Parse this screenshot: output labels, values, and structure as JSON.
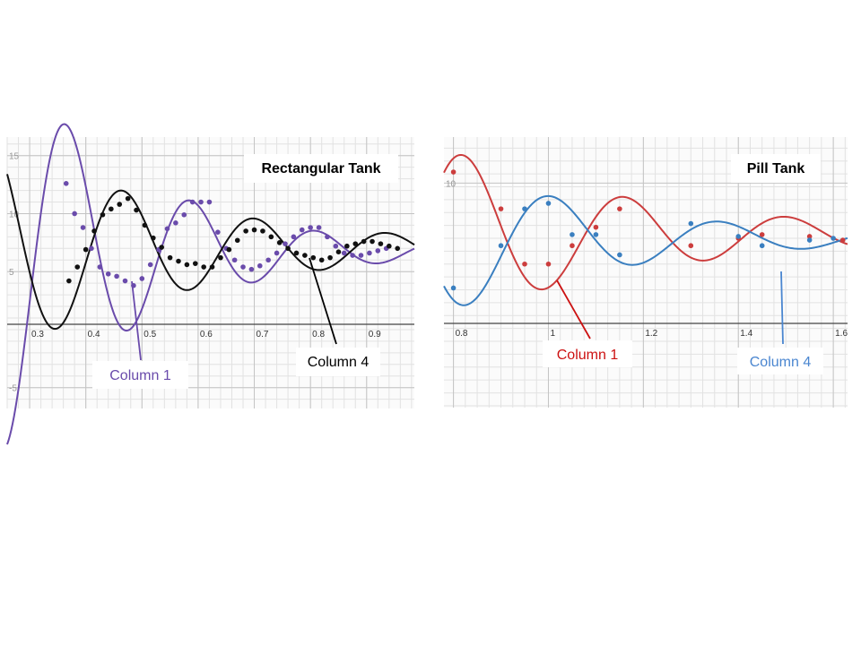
{
  "chart_data": [
    {
      "type": "scatter",
      "title": "Rectangular Tank",
      "xlabel": "",
      "ylabel": "",
      "xlim": [
        0.26,
        0.985
      ],
      "ylim": [
        -6.8,
        16.6
      ],
      "grid": true,
      "xticks": [
        "0.3",
        "0.4",
        "0.5",
        "0.6",
        "0.7",
        "0.8",
        "0.9"
      ],
      "xtick_values": [
        0.3,
        0.4,
        0.5,
        0.6,
        0.7,
        0.8,
        0.9
      ],
      "yticks": [
        "-5",
        "5",
        "10",
        "15"
      ],
      "ytick_values": [
        -5,
        5,
        10,
        15
      ],
      "series": [
        {
          "name": "Column 1",
          "color": "#6a4bab",
          "points": [
            [
              0.365,
              12.6
            ],
            [
              0.38,
              10
            ],
            [
              0.395,
              8.8
            ],
            [
              0.41,
              7
            ],
            [
              0.425,
              5.4
            ],
            [
              0.44,
              4.8
            ],
            [
              0.455,
              4.6
            ],
            [
              0.47,
              4.2
            ],
            [
              0.485,
              3.8
            ],
            [
              0.5,
              4.4
            ],
            [
              0.515,
              5.6
            ],
            [
              0.53,
              6.9
            ],
            [
              0.545,
              8.7
            ],
            [
              0.56,
              9.2
            ],
            [
              0.575,
              9.9
            ],
            [
              0.59,
              11
            ],
            [
              0.605,
              11
            ],
            [
              0.62,
              11
            ],
            [
              0.635,
              8.4
            ],
            [
              0.65,
              7
            ],
            [
              0.665,
              6
            ],
            [
              0.68,
              5.4
            ],
            [
              0.695,
              5.2
            ],
            [
              0.71,
              5.5
            ],
            [
              0.725,
              6
            ],
            [
              0.74,
              6.6
            ],
            [
              0.755,
              7.4
            ],
            [
              0.77,
              8
            ],
            [
              0.785,
              8.6
            ],
            [
              0.8,
              8.8
            ],
            [
              0.815,
              8.8
            ],
            [
              0.83,
              8
            ],
            [
              0.845,
              7.2
            ],
            [
              0.86,
              6.6
            ],
            [
              0.875,
              6.4
            ],
            [
              0.89,
              6.4
            ],
            [
              0.905,
              6.6
            ],
            [
              0.92,
              6.8
            ],
            [
              0.935,
              7
            ]
          ],
          "curve": {
            "mean": 6.8,
            "amplitude": 10.8,
            "decay": 4.15,
            "period": 0.222,
            "phase_x": 0.3667
          }
        },
        {
          "name": "Column 4",
          "color": "#111111",
          "points": [
            [
              0.37,
              4.2
            ],
            [
              0.385,
              5.4
            ],
            [
              0.4,
              6.9
            ],
            [
              0.415,
              8.5
            ],
            [
              0.43,
              9.9
            ],
            [
              0.445,
              10.4
            ],
            [
              0.46,
              10.8
            ],
            [
              0.475,
              11.3
            ],
            [
              0.49,
              10.3
            ],
            [
              0.505,
              9
            ],
            [
              0.52,
              7.9
            ],
            [
              0.535,
              7.1
            ],
            [
              0.55,
              6.2
            ],
            [
              0.565,
              5.9
            ],
            [
              0.58,
              5.6
            ],
            [
              0.595,
              5.7
            ],
            [
              0.61,
              5.4
            ],
            [
              0.625,
              5.4
            ],
            [
              0.64,
              6.2
            ],
            [
              0.655,
              6.9
            ],
            [
              0.67,
              7.7
            ],
            [
              0.685,
              8.5
            ],
            [
              0.7,
              8.6
            ],
            [
              0.715,
              8.5
            ],
            [
              0.73,
              8
            ],
            [
              0.745,
              7.5
            ],
            [
              0.76,
              7
            ],
            [
              0.775,
              6.6
            ],
            [
              0.79,
              6.4
            ],
            [
              0.805,
              6.2
            ],
            [
              0.82,
              6
            ],
            [
              0.835,
              6.2
            ],
            [
              0.85,
              6.7
            ],
            [
              0.865,
              7.2
            ],
            [
              0.88,
              7.4
            ],
            [
              0.895,
              7.6
            ],
            [
              0.91,
              7.6
            ],
            [
              0.925,
              7.4
            ],
            [
              0.94,
              7.2
            ],
            [
              0.955,
              7
            ]
          ],
          "curve": {
            "mean": 7.0,
            "amplitude": -6.9,
            "decay": 2.8,
            "period": 0.235,
            "phase_x": 0.349
          }
        }
      ],
      "annotations": [
        {
          "text": "Column 1",
          "series": "Column 1"
        },
        {
          "text": "Column 4",
          "series": "Column 4"
        }
      ]
    },
    {
      "type": "scatter",
      "title": "Pill Tank",
      "xlabel": "",
      "ylabel": "",
      "xlim": [
        0.78,
        1.63
      ],
      "ylim": [
        -2.2,
        12.5
      ],
      "grid": true,
      "xticks": [
        "0.8",
        "1",
        "1.2",
        "1.4",
        "1.6"
      ],
      "xtick_values": [
        0.8,
        1.0,
        1.2,
        1.4,
        1.6
      ],
      "yticks": [
        "10"
      ],
      "ytick_values": [
        10
      ],
      "series": [
        {
          "name": "Column 1",
          "color": "#cc3d3d",
          "points": [
            [
              0.8,
              10.6
            ],
            [
              0.9,
              8.6
            ],
            [
              0.95,
              5.6
            ],
            [
              1.0,
              5.6
            ],
            [
              1.05,
              6.6
            ],
            [
              1.1,
              7.6
            ],
            [
              1.15,
              8.6
            ],
            [
              1.3,
              6.6
            ],
            [
              1.4,
              7
            ],
            [
              1.45,
              7.2
            ],
            [
              1.55,
              7.1
            ],
            [
              1.62,
              6.9
            ]
          ],
          "curve": {
            "mean": 7.2,
            "amplitude": 4.3,
            "decay": 2.2,
            "period": 0.34,
            "phase_x": 0.822
          }
        },
        {
          "name": "Column 4",
          "color": "#3a7fc0",
          "points": [
            [
              0.8,
              4.3
            ],
            [
              0.9,
              6.6
            ],
            [
              0.95,
              8.6
            ],
            [
              1.0,
              8.9
            ],
            [
              1.05,
              7.2
            ],
            [
              1.1,
              7.2
            ],
            [
              1.15,
              6.1
            ],
            [
              1.3,
              7.8
            ],
            [
              1.4,
              7.1
            ],
            [
              1.45,
              6.6
            ],
            [
              1.55,
              6.9
            ],
            [
              1.6,
              7
            ]
          ],
          "curve": {
            "mean": 7.0,
            "amplitude": -3.6,
            "decay": 2.6,
            "period": 0.355,
            "phase_x": 0.83
          }
        }
      ],
      "annotations": [
        {
          "text": "Column 1",
          "series": "Column 1"
        },
        {
          "text": "Column 4",
          "series": "Column 4"
        }
      ]
    }
  ]
}
